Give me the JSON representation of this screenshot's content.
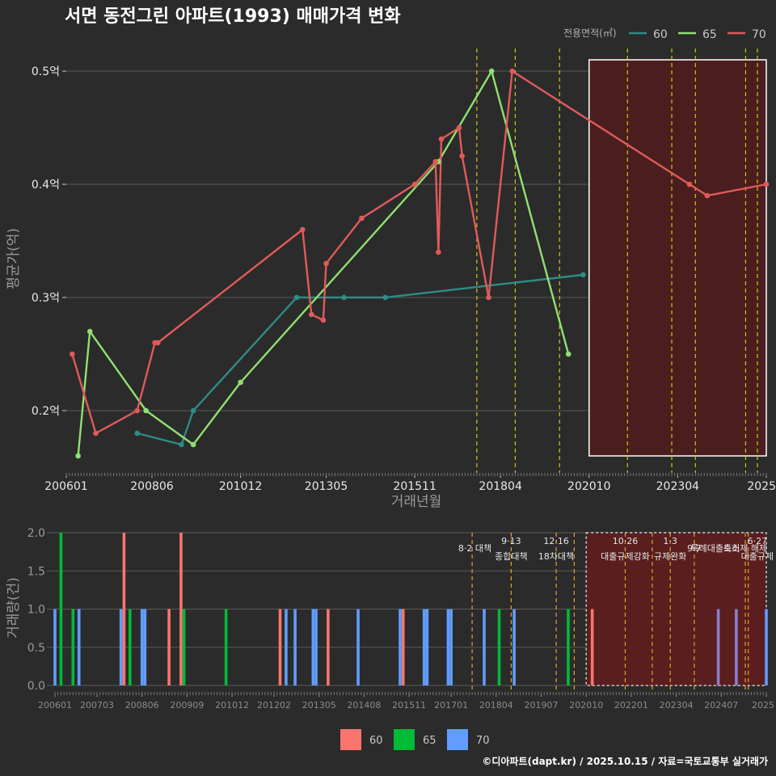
{
  "title": "서면 동전그린 아파트(1993) 매매가격 변화",
  "footer": "©디아파트(dapt.kr) / 2025.10.15 / 자료=국토교통부 실거래가",
  "colors": {
    "bg": "#2b2b2b",
    "grid": "#5a5a5a",
    "policy_line": "#d4c215",
    "policy_line_bottom": "#e0a12a",
    "highlight_fill": "#4a1e1e",
    "highlight_fill_bottom": "#5a1e1e"
  },
  "chart_data": [
    {
      "type": "line",
      "title": "서면 동전그린 아파트(1993) 매매가격 변화",
      "xlabel": "거래년월",
      "ylabel": "평균가(억)",
      "x_range": [
        2006.0,
        2025.75
      ],
      "ylim": [
        0.145,
        0.52
      ],
      "x_ticks": [
        {
          "label": "200601",
          "x": 2006.0
        },
        {
          "label": "200806",
          "x": 2008.417
        },
        {
          "label": "201012",
          "x": 2010.917
        },
        {
          "label": "201305",
          "x": 2013.333
        },
        {
          "label": "201511",
          "x": 2015.833
        },
        {
          "label": "201804",
          "x": 2018.25
        },
        {
          "label": "202010",
          "x": 2020.75
        },
        {
          "label": "202304",
          "x": 2023.25
        },
        {
          "label": "2025",
          "x": 2025.75
        }
      ],
      "y_ticks": [
        {
          "label": "0.2억",
          "value": 0.2
        },
        {
          "label": "0.3억",
          "value": 0.3
        },
        {
          "label": "0.4억",
          "value": 0.4
        },
        {
          "label": "0.5억",
          "value": 0.5
        }
      ],
      "legend": {
        "title": "전용면적(㎡)",
        "position": "top-right",
        "entries": [
          {
            "name": "60",
            "color": "#2e8b85"
          },
          {
            "name": "65",
            "color": "#90e070"
          },
          {
            "name": "70",
            "color": "#e05a5a"
          }
        ]
      },
      "series": [
        {
          "name": "60",
          "color": "#2e8b85",
          "points": [
            [
              2008.0,
              0.18
            ],
            [
              2009.25,
              0.17
            ],
            [
              2009.583,
              0.2
            ],
            [
              2012.5,
              0.3
            ],
            [
              2013.833,
              0.3
            ],
            [
              2015.0,
              0.3
            ],
            [
              2020.583,
              0.32
            ]
          ]
        },
        {
          "name": "65",
          "color": "#90e070",
          "points": [
            [
              2006.333,
              0.16
            ],
            [
              2006.667,
              0.27
            ],
            [
              2008.25,
              0.2
            ],
            [
              2009.583,
              0.17
            ],
            [
              2010.917,
              0.225
            ],
            [
              2016.5,
              0.42
            ],
            [
              2018.0,
              0.5
            ],
            [
              2020.167,
              0.25
            ]
          ]
        },
        {
          "name": "70",
          "color": "#e05a5a",
          "points": [
            [
              2006.167,
              0.25
            ],
            [
              2006.833,
              0.18
            ],
            [
              2008.0,
              0.2
            ],
            [
              2008.5,
              0.26
            ],
            [
              2008.583,
              0.26
            ],
            [
              2012.667,
              0.36
            ],
            [
              2012.917,
              0.285
            ],
            [
              2013.25,
              0.28
            ],
            [
              2013.333,
              0.33
            ],
            [
              2014.333,
              0.37
            ],
            [
              2015.833,
              0.4
            ],
            [
              2016.417,
              0.42
            ],
            [
              2016.5,
              0.34
            ],
            [
              2016.583,
              0.44
            ],
            [
              2017.083,
              0.45
            ],
            [
              2017.167,
              0.425
            ],
            [
              2017.917,
              0.3
            ],
            [
              2018.583,
              0.5
            ],
            [
              2023.583,
              0.4
            ],
            [
              2024.083,
              0.39
            ],
            [
              2025.75,
              0.4
            ]
          ]
        }
      ],
      "policy_dates_x": [
        2017.583,
        2018.667,
        2019.917,
        2021.833,
        2023.083,
        2023.75,
        2025.167,
        2025.5
      ],
      "highlight_x_range": [
        2020.75,
        2025.75
      ],
      "highlight_y_range": [
        0.16,
        0.51
      ]
    },
    {
      "type": "bar",
      "xlabel": "",
      "ylabel": "거래량(건)",
      "x_range": [
        2006.0,
        2025.75
      ],
      "ylim": [
        0,
        2.0
      ],
      "y_ticks": [
        {
          "label": "0.0",
          "value": 0.0
        },
        {
          "label": "0.5",
          "value": 0.5
        },
        {
          "label": "1.0",
          "value": 1.0
        },
        {
          "label": "1.5",
          "value": 1.5
        },
        {
          "label": "2.0",
          "value": 2.0
        }
      ],
      "x_ticks": [
        {
          "label": "200601",
          "x": 2006.0
        },
        {
          "label": "200703",
          "x": 2007.167
        },
        {
          "label": "200806",
          "x": 2008.417
        },
        {
          "label": "200909",
          "x": 2009.667
        },
        {
          "label": "201012",
          "x": 2010.917
        },
        {
          "label": "201202",
          "x": 2012.083
        },
        {
          "label": "201305",
          "x": 2013.333
        },
        {
          "label": "201408",
          "x": 2014.583
        },
        {
          "label": "201511",
          "x": 2015.833
        },
        {
          "label": "201701",
          "x": 2017.0
        },
        {
          "label": "201804",
          "x": 2018.25
        },
        {
          "label": "201907",
          "x": 2019.5
        },
        {
          "label": "202010",
          "x": 2020.75
        },
        {
          "label": "202201",
          "x": 2022.0
        },
        {
          "label": "202304",
          "x": 2023.25
        },
        {
          "label": "202407",
          "x": 2024.5
        },
        {
          "label": "2025",
          "x": 2025.75
        }
      ],
      "legend": {
        "position": "bottom",
        "entries": [
          {
            "name": "60",
            "color": "#f8766d"
          },
          {
            "name": "65",
            "color": "#00ba38"
          },
          {
            "name": "70",
            "color": "#619cff"
          }
        ]
      },
      "bars": [
        {
          "x": 2006.0,
          "series": "70",
          "value": 1,
          "color": "#619cff"
        },
        {
          "x": 2006.167,
          "series": "65",
          "value": 2,
          "color": "#00ba38"
        },
        {
          "x": 2006.5,
          "series": "65",
          "value": 1,
          "color": "#00ba38"
        },
        {
          "x": 2006.667,
          "series": "70",
          "value": 1,
          "color": "#619cff"
        },
        {
          "x": 2007.833,
          "series": "70",
          "value": 1,
          "color": "#619cff"
        },
        {
          "x": 2007.917,
          "series": "60",
          "value": 2,
          "color": "#f8766d"
        },
        {
          "x": 2008.083,
          "series": "65",
          "value": 1,
          "color": "#00ba38"
        },
        {
          "x": 2008.417,
          "series": "70",
          "value": 1,
          "color": "#619cff"
        },
        {
          "x": 2008.5,
          "series": "70",
          "value": 1,
          "color": "#619cff"
        },
        {
          "x": 2009.167,
          "series": "60",
          "value": 1,
          "color": "#f8766d"
        },
        {
          "x": 2009.5,
          "series": "60",
          "value": 2,
          "color": "#f8766d"
        },
        {
          "x": 2009.583,
          "series": "65",
          "value": 1,
          "color": "#00ba38"
        },
        {
          "x": 2010.75,
          "series": "65",
          "value": 1,
          "color": "#00ba38"
        },
        {
          "x": 2012.25,
          "series": "60",
          "value": 1,
          "color": "#f8766d"
        },
        {
          "x": 2012.417,
          "series": "70",
          "value": 1,
          "color": "#619cff"
        },
        {
          "x": 2012.667,
          "series": "70",
          "value": 1,
          "color": "#619cff"
        },
        {
          "x": 2013.167,
          "series": "70",
          "value": 1,
          "color": "#619cff"
        },
        {
          "x": 2013.25,
          "series": "70",
          "value": 1,
          "color": "#619cff"
        },
        {
          "x": 2013.583,
          "series": "60",
          "value": 1,
          "color": "#f8766d"
        },
        {
          "x": 2014.417,
          "series": "70",
          "value": 1,
          "color": "#619cff"
        },
        {
          "x": 2015.583,
          "series": "70",
          "value": 1,
          "color": "#619cff"
        },
        {
          "x": 2015.667,
          "series": "60",
          "value": 1,
          "color": "#f8766d"
        },
        {
          "x": 2016.25,
          "series": "70",
          "value": 1,
          "color": "#619cff"
        },
        {
          "x": 2016.333,
          "series": "70",
          "value": 1,
          "color": "#619cff"
        },
        {
          "x": 2016.917,
          "series": "70",
          "value": 1,
          "color": "#619cff"
        },
        {
          "x": 2017.0,
          "series": "70",
          "value": 1,
          "color": "#619cff"
        },
        {
          "x": 2017.917,
          "series": "70",
          "value": 1,
          "color": "#619cff"
        },
        {
          "x": 2018.333,
          "series": "65",
          "value": 1,
          "color": "#00ba38"
        },
        {
          "x": 2018.75,
          "series": "70",
          "value": 1,
          "color": "#619cff"
        },
        {
          "x": 2020.25,
          "series": "65",
          "value": 1,
          "color": "#00ba38"
        },
        {
          "x": 2020.917,
          "series": "60",
          "value": 1,
          "color": "#f8766d"
        },
        {
          "x": 2024.417,
          "series": "70",
          "value": 1,
          "color": "#8a7fd0"
        },
        {
          "x": 2024.917,
          "series": "70",
          "value": 1,
          "color": "#8a7fd0"
        },
        {
          "x": 2025.75,
          "series": "70",
          "value": 1,
          "color": "#619cff"
        }
      ],
      "policy_dates_x": [
        2017.583,
        2018.667,
        2019.917,
        2020.417,
        2021.833,
        2022.583,
        2023.083,
        2023.75,
        2025.167,
        2025.25
      ],
      "highlight_x_range": [
        2020.75,
        2025.75
      ],
      "annotations": [
        {
          "x": 2017.583,
          "line1": "",
          "line2": "8·2 대책",
          "anchor": "end"
        },
        {
          "x": 2018.667,
          "line1": "9·13",
          "line2": "종합대책",
          "anchor": "middle"
        },
        {
          "x": 2019.917,
          "line1": "12·16",
          "line2": "18차대책",
          "anchor": "middle"
        },
        {
          "x": 2021.833,
          "line1": "10·26",
          "line2": "대출규제강화",
          "anchor": "middle"
        },
        {
          "x": 2023.083,
          "line1": "1·3",
          "line2": "규제완화",
          "anchor": "middle"
        },
        {
          "x": 2023.75,
          "line1": "",
          "line2": "9·7",
          "anchor": "middle"
        },
        {
          "x": 2024.333,
          "line1": "",
          "line2": "특례대출축소",
          "anchor": "middle"
        },
        {
          "x": 2025.167,
          "line1": "",
          "line2": "토허제 해제",
          "anchor": "middle"
        },
        {
          "x": 2025.5,
          "line1": "6·27",
          "line2": "대출규제",
          "anchor": "middle"
        }
      ]
    }
  ]
}
